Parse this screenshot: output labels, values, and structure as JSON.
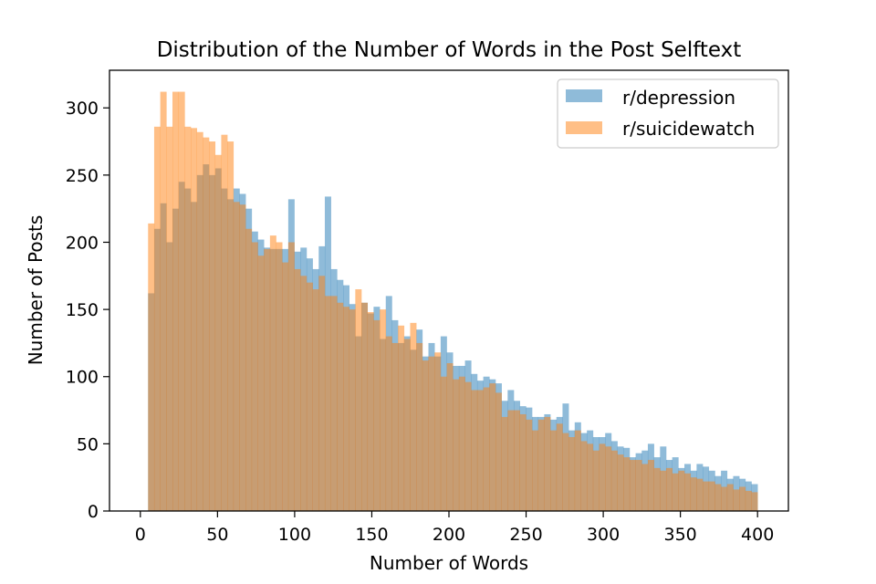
{
  "chart_data": {
    "type": "histogram",
    "title": "Distribution of the Number of Words in the Post Selftext",
    "xlabel": "Number of Words",
    "ylabel": "Number of Posts",
    "xlim": [
      -20,
      420
    ],
    "ylim": [
      0,
      328
    ],
    "xticks": [
      0,
      50,
      100,
      150,
      200,
      250,
      300,
      350,
      400
    ],
    "yticks": [
      0,
      50,
      100,
      150,
      200,
      250,
      300
    ],
    "bin_start": 5,
    "bin_width": 3.95,
    "bins_count": 100,
    "legend_position": "top-right",
    "grid": false,
    "series": [
      {
        "name": "r/depression",
        "color": "#1f77b4",
        "alpha": 0.5,
        "values": [
          162,
          210,
          229,
          200,
          225,
          245,
          240,
          230,
          250,
          258,
          250,
          255,
          240,
          232,
          240,
          236,
          225,
          208,
          202,
          196,
          195,
          195,
          195,
          232,
          193,
          196,
          188,
          180,
          197,
          234,
          180,
          172,
          168,
          154,
          130,
          155,
          147,
          152,
          128,
          160,
          142,
          125,
          130,
          120,
          135,
          115,
          125,
          115,
          130,
          118,
          108,
          108,
          112,
          102,
          97,
          100,
          98,
          95,
          82,
          90,
          82,
          78,
          77,
          70,
          70,
          72,
          68,
          70,
          80,
          60,
          66,
          58,
          60,
          55,
          55,
          58,
          52,
          48,
          47,
          40,
          43,
          45,
          50,
          40,
          48,
          38,
          40,
          32,
          35,
          30,
          35,
          33,
          30,
          26,
          30,
          24,
          26,
          24,
          22,
          20
        ]
      },
      {
        "name": "r/suicidewatch",
        "color": "#ff7f0e",
        "alpha": 0.5,
        "values": [
          214,
          286,
          312,
          286,
          312,
          312,
          286,
          285,
          282,
          278,
          275,
          265,
          280,
          275,
          230,
          228,
          210,
          200,
          190,
          195,
          205,
          200,
          185,
          200,
          180,
          175,
          170,
          165,
          175,
          160,
          160,
          155,
          152,
          150,
          165,
          155,
          148,
          142,
          150,
          130,
          125,
          138,
          128,
          140,
          125,
          112,
          115,
          118,
          100,
          110,
          98,
          100,
          96,
          90,
          90,
          92,
          95,
          88,
          70,
          75,
          75,
          72,
          68,
          60,
          68,
          70,
          60,
          65,
          58,
          55,
          60,
          52,
          50,
          45,
          50,
          48,
          45,
          42,
          40,
          38,
          38,
          35,
          38,
          32,
          30,
          32,
          28,
          30,
          28,
          25,
          24,
          22,
          22,
          20,
          18,
          20,
          16,
          18,
          15,
          14
        ]
      }
    ]
  }
}
